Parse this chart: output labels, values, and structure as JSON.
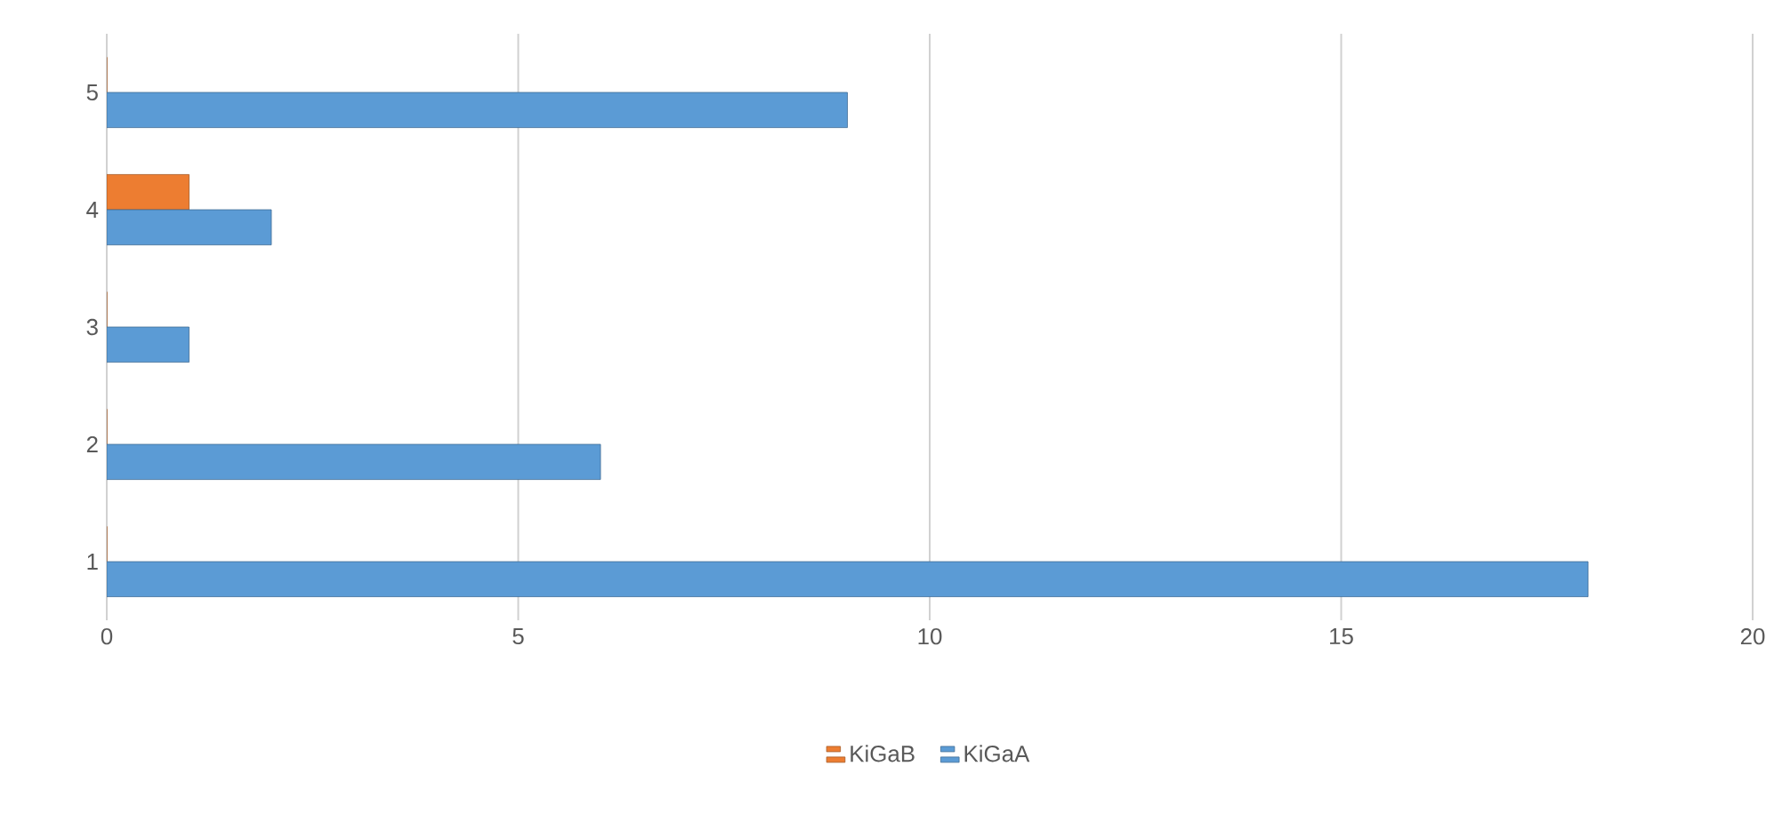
{
  "chart_data": {
    "type": "bar",
    "orientation": "horizontal",
    "categories": [
      "5",
      "4",
      "3",
      "2",
      "1"
    ],
    "series": [
      {
        "name": "KiGaB",
        "color": "#ed7d31",
        "values": [
          0,
          1,
          0,
          0,
          0
        ]
      },
      {
        "name": "KiGaA",
        "color": "#5b9bd5",
        "values": [
          9,
          2,
          1,
          6,
          18
        ]
      }
    ],
    "xlim": [
      0,
      20
    ],
    "xticks": [
      0,
      5,
      10,
      15,
      20
    ],
    "grid": "x",
    "legend": "bottom"
  }
}
